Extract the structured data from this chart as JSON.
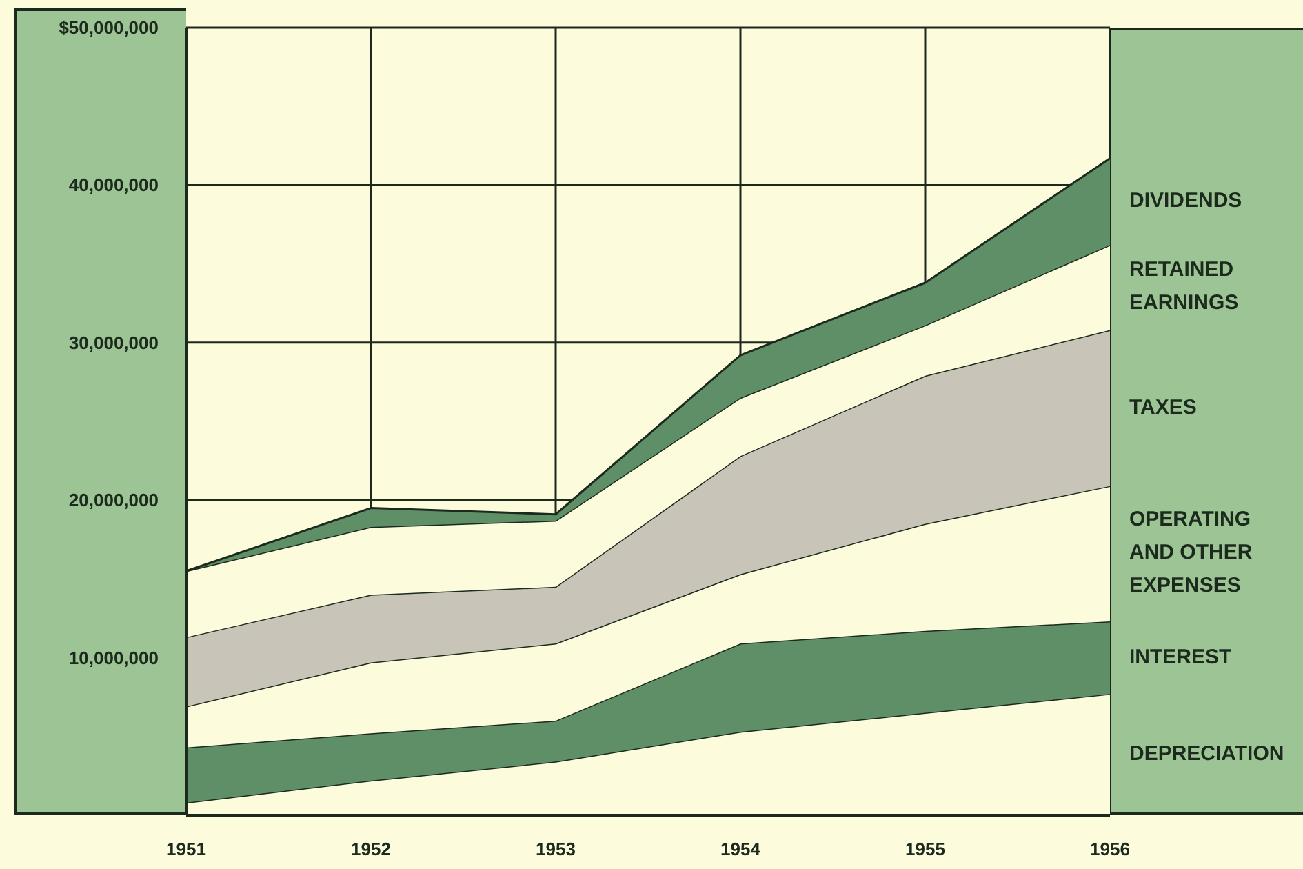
{
  "chart_data": {
    "type": "area",
    "stacked": true,
    "categories": [
      "1951",
      "1952",
      "1953",
      "1954",
      "1955",
      "1956"
    ],
    "series": [
      {
        "name": "DEPRECIATION",
        "color": "#fcfbdc",
        "values": [
          800000,
          2200000,
          3400000,
          5300000,
          6500000,
          7700000
        ]
      },
      {
        "name": "INTEREST",
        "color": "#5f8f66",
        "values": [
          3500000,
          3000000,
          2600000,
          5600000,
          5200000,
          4600000
        ]
      },
      {
        "name": "OPERATING AND OTHER EXPENSES",
        "color": "#fcfbdc",
        "values": [
          2600000,
          4500000,
          4900000,
          4400000,
          6800000,
          8600000
        ]
      },
      {
        "name": "TAXES",
        "color": "#c8c4b8",
        "values": [
          4400000,
          4300000,
          3600000,
          7500000,
          9400000,
          9900000
        ]
      },
      {
        "name": "RETAINED EARNINGS",
        "color": "#fcfbdc",
        "values": [
          4200000,
          4300000,
          4200000,
          3700000,
          3200000,
          5400000
        ]
      },
      {
        "name": "DIVIDENDS",
        "color": "#5f8f66",
        "values": [
          0,
          1200000,
          400000,
          2700000,
          2700000,
          5500000
        ]
      }
    ],
    "ylim": [
      0,
      50000000
    ],
    "yticks": [
      {
        "value": 10000000,
        "label": "10,000,000"
      },
      {
        "value": 20000000,
        "label": "20,000,000"
      },
      {
        "value": 30000000,
        "label": "30,000,000"
      },
      {
        "value": 40000000,
        "label": "40,000,000"
      },
      {
        "value": 50000000,
        "label": "$50,000,000"
      }
    ],
    "grid": true
  }
}
